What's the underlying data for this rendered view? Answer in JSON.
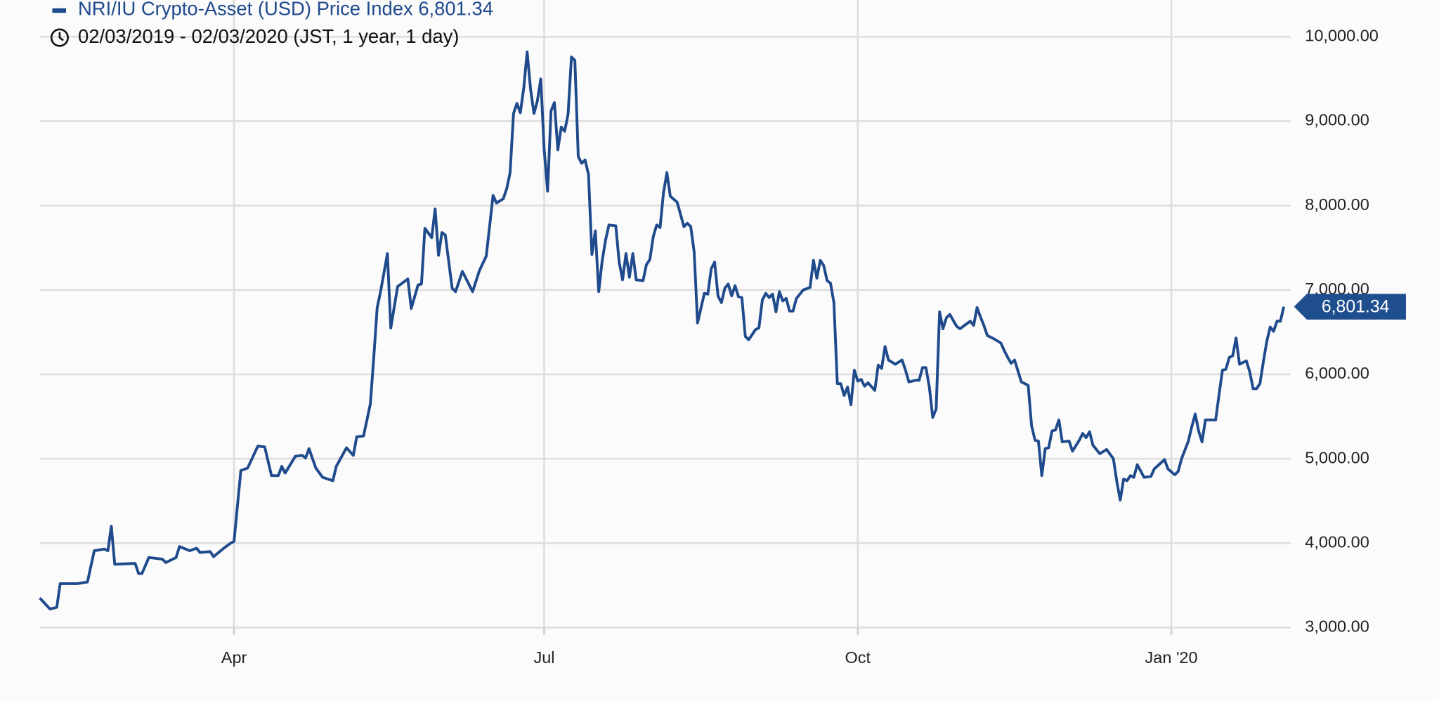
{
  "chart_data": {
    "type": "line",
    "title": "NRI/IU Crypto-Asset (USD) Price Index",
    "current_value_label": "6,801.34",
    "subtitle": "02/03/2019 - 02/03/2020  (JST, 1 year, 1 day)",
    "x": [
      0,
      3,
      5,
      6,
      9,
      11,
      14,
      16,
      19,
      20,
      21,
      22,
      28,
      29,
      30,
      32,
      36,
      37,
      40,
      41,
      44,
      46,
      47,
      50,
      51,
      54,
      56,
      57,
      59,
      61,
      64,
      66,
      68,
      70,
      71,
      72,
      75,
      77,
      78,
      79,
      81,
      83,
      86,
      87,
      90,
      92,
      93,
      95,
      97,
      98,
      99,
      100,
      102,
      103,
      105,
      108,
      109,
      111,
      112,
      113,
      115,
      116,
      117,
      118,
      119,
      121,
      122,
      124,
      125,
      127,
      129,
      131,
      132,
      133,
      134,
      136,
      137,
      138,
      139,
      140,
      141,
      142,
      143,
      144,
      145,
      146,
      147,
      148,
      149,
      150,
      151,
      152,
      153,
      154,
      155,
      156,
      157,
      158,
      159,
      160,
      161,
      162,
      163,
      164,
      165,
      166,
      167,
      169,
      170,
      171,
      172,
      173,
      174,
      175,
      177,
      178,
      179,
      180,
      181,
      182,
      183,
      184,
      185,
      187,
      189,
      190,
      191,
      192,
      193,
      195,
      196,
      197,
      198,
      199,
      200,
      201,
      202,
      203,
      204,
      205,
      206,
      207,
      208,
      210,
      211,
      212,
      213,
      214,
      215,
      216,
      217,
      218,
      219,
      220,
      221,
      222,
      224,
      226,
      227,
      228,
      229,
      230,
      231,
      232,
      233,
      234,
      235,
      236,
      237,
      238,
      239,
      240,
      241,
      242,
      243,
      245,
      246,
      247,
      248,
      249,
      251,
      253,
      254,
      255,
      257,
      258,
      259,
      260,
      261,
      262,
      263,
      264,
      265,
      266,
      267,
      269,
      270,
      273,
      274,
      275,
      276,
      277,
      278,
      280,
      282,
      283,
      284,
      285,
      286,
      288,
      290,
      291,
      292,
      293,
      294,
      295,
      296,
      297,
      298,
      299,
      300,
      302,
      303,
      305,
      306,
      307,
      308,
      309,
      311,
      313,
      315,
      316,
      317,
      318,
      319,
      320,
      321,
      322,
      324,
      326,
      327,
      330,
      331,
      333,
      334,
      335,
      337,
      338,
      339,
      340,
      341,
      342,
      345,
      346,
      347,
      348,
      349,
      350,
      351,
      352,
      354,
      355,
      356,
      357,
      358,
      359,
      360,
      361,
      362,
      363,
      364,
      365
    ],
    "series": [
      {
        "name": "NRI/IU Crypto-Asset (USD) Price Index",
        "color": "#1f4a8c",
        "values": [
          3350,
          3220,
          3240,
          3520,
          3520,
          3520,
          3540,
          3910,
          3930,
          3910,
          4200,
          3750,
          3760,
          3640,
          3640,
          3830,
          3810,
          3770,
          3830,
          3960,
          3910,
          3940,
          3890,
          3900,
          3840,
          3940,
          4000,
          4020,
          4860,
          4890,
          5150,
          5140,
          4800,
          4800,
          4910,
          4830,
          5030,
          5040,
          5010,
          5120,
          4890,
          4780,
          4740,
          4910,
          5130,
          5040,
          5260,
          5270,
          5650,
          6200,
          6790,
          6980,
          7430,
          6550,
          7040,
          7130,
          6780,
          7060,
          7070,
          7730,
          7620,
          7960,
          7410,
          7680,
          7650,
          7020,
          6980,
          7220,
          7140,
          6980,
          7230,
          7400,
          7760,
          8120,
          8030,
          8080,
          8200,
          8390,
          9090,
          9210,
          9100,
          9390,
          9820,
          9380,
          9090,
          9240,
          9500,
          8660,
          8170,
          9120,
          9220,
          8660,
          8930,
          8880,
          9080,
          9760,
          9720,
          8580,
          8500,
          8540,
          8370,
          7420,
          7700,
          6980,
          7340,
          7590,
          7770,
          7760,
          7330,
          7120,
          7430,
          7150,
          7430,
          7120,
          7110,
          7300,
          7360,
          7630,
          7770,
          7740,
          8150,
          8390,
          8110,
          8040,
          7750,
          7790,
          7750,
          7450,
          6610,
          6960,
          6950,
          7250,
          7330,
          6930,
          6850,
          7020,
          7070,
          6930,
          7050,
          6920,
          6910,
          6450,
          6410,
          6530,
          6550,
          6880,
          6960,
          6910,
          6950,
          6740,
          6980,
          6870,
          6900,
          6750,
          6750,
          6900,
          7000,
          7030,
          7350,
          7140,
          7350,
          7290,
          7110,
          7080,
          6850,
          5890,
          5890,
          5750,
          5850,
          5640,
          6050,
          5920,
          5940,
          5860,
          5900,
          5810,
          6110,
          6070,
          6330,
          6170,
          6120,
          6170,
          6050,
          5910,
          5930,
          5930,
          6080,
          6080,
          5850,
          5490,
          5590,
          6740,
          6540,
          6670,
          6710,
          6570,
          6540,
          6630,
          6580,
          6790,
          6680,
          6580,
          6460,
          6420,
          6370,
          6280,
          6200,
          6130,
          6170,
          5910,
          5870,
          5390,
          5220,
          5210,
          4800,
          5120,
          5130,
          5330,
          5340,
          5460,
          5200,
          5210,
          5090,
          5220,
          5300,
          5250,
          5320,
          5160,
          5060,
          5110,
          5000,
          4730,
          4510,
          4760,
          4740,
          4800,
          4780,
          4930,
          4780,
          4790,
          4880,
          4990,
          4880,
          4810,
          4850,
          5000,
          5210,
          5380,
          5530,
          5330,
          5200,
          5460,
          5460,
          5760,
          6050,
          6060,
          6200,
          6220,
          6430,
          6120,
          6160,
          6030,
          5830,
          5830,
          5890,
          6150,
          6390,
          6560,
          6510,
          6630,
          6630,
          6801.34
        ]
      }
    ],
    "xlim": [
      0,
      367
    ],
    "xticks": [
      {
        "value": 57,
        "label": "Apr"
      },
      {
        "value": 148,
        "label": "Jul"
      },
      {
        "value": 240,
        "label": "Oct"
      },
      {
        "value": 332,
        "label": "Jan '20"
      }
    ],
    "ylim": [
      3000,
      10000
    ],
    "yticks": [
      {
        "value": 3000,
        "label": "3,000.00"
      },
      {
        "value": 4000,
        "label": "4,000.00"
      },
      {
        "value": 5000,
        "label": "5,000.00"
      },
      {
        "value": 6000,
        "label": "6,000.00"
      },
      {
        "value": 7000,
        "label": "7,000.00"
      },
      {
        "value": 8000,
        "label": "8,000.00"
      },
      {
        "value": 9000,
        "label": "9,000.00"
      },
      {
        "value": 10000,
        "label": "10,000.00"
      }
    ],
    "grid": true
  }
}
